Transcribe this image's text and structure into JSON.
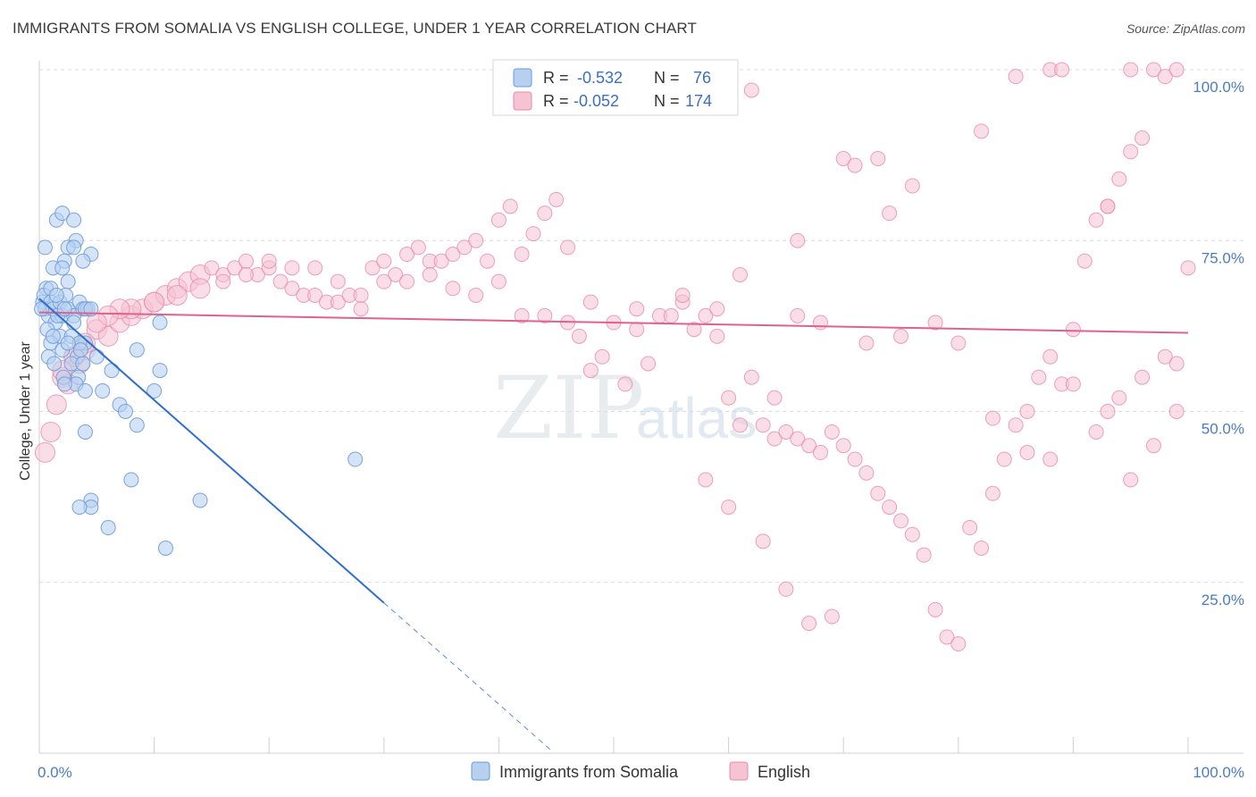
{
  "chart_data": {
    "type": "scatter",
    "title": "IMMIGRANTS FROM SOMALIA VS ENGLISH COLLEGE, UNDER 1 YEAR CORRELATION CHART",
    "source": "Source: ZipAtlas.com",
    "xlabel": "",
    "ylabel": "College, Under 1 year",
    "xlim": [
      0,
      100
    ],
    "ylim": [
      0,
      100
    ],
    "x_tick_labels": [
      "0.0%",
      "100.0%"
    ],
    "y_tick_labels": [
      {
        "value": 100,
        "label": "100.0%"
      },
      {
        "value": 75,
        "label": "75.0%"
      },
      {
        "value": 50,
        "label": "50.0%"
      },
      {
        "value": 25,
        "label": "25.0%"
      }
    ],
    "watermark": {
      "part1": "ZIP",
      "part2": "atlas"
    },
    "legend": {
      "r_label": "R =",
      "n_label": "N =",
      "entries": [
        {
          "name": "Immigrants from Somalia",
          "r": "-0.532",
          "n": "76",
          "color": "#6b9bd8",
          "fill": "#b8d0f0"
        },
        {
          "name": "English",
          "r": "-0.052",
          "n": "174",
          "color": "#e88aa8",
          "fill": "#f6c3d3"
        }
      ]
    },
    "series": [
      {
        "name": "Immigrants from Somalia",
        "color": "#6b9bd8",
        "trend": {
          "x0": 0,
          "y0": 66.5,
          "x1": 30,
          "y1": 22,
          "dash_x1": 44.5,
          "dash_y1": 0.5,
          "color": "#2f6fcf"
        },
        "points": [
          [
            0.3,
            66
          ],
          [
            0.5,
            65
          ],
          [
            0.6,
            68
          ],
          [
            0.8,
            64
          ],
          [
            0.4,
            67
          ],
          [
            1,
            66
          ],
          [
            1.2,
            65
          ],
          [
            1.4,
            63
          ],
          [
            0.7,
            62
          ],
          [
            1.8,
            66
          ],
          [
            2,
            64
          ],
          [
            2.5,
            65
          ],
          [
            3,
            64
          ],
          [
            3.5,
            66
          ],
          [
            3.8,
            65
          ],
          [
            4.2,
            65
          ],
          [
            0.5,
            74
          ],
          [
            1.5,
            78
          ],
          [
            2,
            79
          ],
          [
            3,
            78
          ],
          [
            3.2,
            75
          ],
          [
            2.5,
            74
          ],
          [
            3,
            74
          ],
          [
            4.5,
            73
          ],
          [
            2.2,
            72
          ],
          [
            1.2,
            71
          ],
          [
            2,
            71
          ],
          [
            3.8,
            72
          ],
          [
            2.5,
            69
          ],
          [
            2.3,
            67
          ],
          [
            4,
            65
          ],
          [
            1.6,
            64
          ],
          [
            1.8,
            61
          ],
          [
            2.8,
            61
          ],
          [
            1,
            60
          ],
          [
            4,
            60
          ],
          [
            3.5,
            60
          ],
          [
            5,
            58
          ],
          [
            0.8,
            58
          ],
          [
            2,
            59
          ],
          [
            3.3,
            58
          ],
          [
            1.3,
            57
          ],
          [
            2.8,
            57
          ],
          [
            3.8,
            57
          ],
          [
            6.3,
            56
          ],
          [
            2.1,
            55
          ],
          [
            3.4,
            55
          ],
          [
            3.2,
            54
          ],
          [
            2.2,
            54
          ],
          [
            4,
            53
          ],
          [
            5.5,
            53
          ],
          [
            7,
            51
          ],
          [
            8.5,
            59
          ],
          [
            10.5,
            56
          ],
          [
            10,
            53
          ],
          [
            7.5,
            50
          ],
          [
            4,
            47
          ],
          [
            8.5,
            48
          ],
          [
            8,
            40
          ],
          [
            4.5,
            37
          ],
          [
            4.5,
            36
          ],
          [
            3.5,
            36
          ],
          [
            6,
            33
          ],
          [
            11,
            30
          ],
          [
            14,
            37
          ],
          [
            27.5,
            43
          ],
          [
            10.5,
            63
          ],
          [
            4.5,
            65
          ],
          [
            0.2,
            65
          ],
          [
            1,
            68
          ],
          [
            1.5,
            67
          ],
          [
            2.2,
            65
          ],
          [
            3,
            63
          ],
          [
            1.2,
            61
          ],
          [
            2.5,
            60
          ],
          [
            3.6,
            59
          ]
        ]
      },
      {
        "name": "English",
        "color": "#e88aa8",
        "trend": {
          "x0": 0,
          "y0": 64.5,
          "x1": 100,
          "y1": 61.5,
          "color": "#e0628a"
        },
        "points": [
          [
            0.5,
            44
          ],
          [
            1,
            47
          ],
          [
            1.5,
            51
          ],
          [
            2,
            55
          ],
          [
            2.5,
            54
          ],
          [
            3,
            58
          ],
          [
            3.5,
            57
          ],
          [
            4,
            59
          ],
          [
            5,
            62
          ],
          [
            6,
            61
          ],
          [
            7,
            63
          ],
          [
            8,
            64
          ],
          [
            9,
            65
          ],
          [
            10,
            66
          ],
          [
            11,
            67
          ],
          [
            12,
            68
          ],
          [
            13,
            69
          ],
          [
            14,
            70
          ],
          [
            15,
            71
          ],
          [
            16,
            70
          ],
          [
            17,
            71
          ],
          [
            18,
            72
          ],
          [
            19,
            70
          ],
          [
            20,
            71
          ],
          [
            21,
            69
          ],
          [
            22,
            68
          ],
          [
            23,
            67
          ],
          [
            24,
            67
          ],
          [
            25,
            66
          ],
          [
            26,
            66
          ],
          [
            27,
            67
          ],
          [
            28,
            67
          ],
          [
            29,
            71
          ],
          [
            30,
            72
          ],
          [
            31,
            70
          ],
          [
            32,
            73
          ],
          [
            33,
            74
          ],
          [
            34,
            72
          ],
          [
            35,
            72
          ],
          [
            36,
            73
          ],
          [
            37,
            74
          ],
          [
            38,
            75
          ],
          [
            39,
            72
          ],
          [
            40,
            78
          ],
          [
            41,
            80
          ],
          [
            42,
            73
          ],
          [
            43,
            76
          ],
          [
            44,
            79
          ],
          [
            45,
            81
          ],
          [
            46,
            74
          ],
          [
            47,
            61
          ],
          [
            48,
            56
          ],
          [
            49,
            58
          ],
          [
            50,
            63
          ],
          [
            51,
            54
          ],
          [
            52,
            62
          ],
          [
            53,
            57
          ],
          [
            54,
            64
          ],
          [
            55,
            64
          ],
          [
            56,
            66
          ],
          [
            57,
            62
          ],
          [
            58,
            64
          ],
          [
            59,
            61
          ],
          [
            60,
            52
          ],
          [
            61,
            48
          ],
          [
            62,
            55
          ],
          [
            63,
            48
          ],
          [
            64,
            46
          ],
          [
            65,
            47
          ],
          [
            66,
            46
          ],
          [
            67,
            45
          ],
          [
            68,
            44
          ],
          [
            69,
            47
          ],
          [
            70,
            45
          ],
          [
            71,
            43
          ],
          [
            72,
            41
          ],
          [
            73,
            38
          ],
          [
            74,
            36
          ],
          [
            75,
            34
          ],
          [
            76,
            32
          ],
          [
            77,
            29
          ],
          [
            78,
            21
          ],
          [
            79,
            17
          ],
          [
            80,
            16
          ],
          [
            81,
            33
          ],
          [
            82,
            30
          ],
          [
            83,
            38
          ],
          [
            84,
            43
          ],
          [
            85,
            48
          ],
          [
            86,
            50
          ],
          [
            87,
            55
          ],
          [
            88,
            58
          ],
          [
            89,
            54
          ],
          [
            90,
            62
          ],
          [
            91,
            72
          ],
          [
            92,
            78
          ],
          [
            93,
            80
          ],
          [
            94,
            84
          ],
          [
            95,
            88
          ],
          [
            96,
            90
          ],
          [
            97,
            100
          ],
          [
            98,
            99
          ],
          [
            99,
            100
          ],
          [
            100,
            71
          ],
          [
            62,
            97
          ],
          [
            70,
            87
          ],
          [
            71,
            86
          ],
          [
            73,
            87
          ],
          [
            76,
            83
          ],
          [
            74,
            79
          ],
          [
            82,
            91
          ],
          [
            85,
            99
          ],
          [
            88,
            100
          ],
          [
            89,
            100
          ],
          [
            95,
            100
          ],
          [
            93,
            80
          ],
          [
            66,
            75
          ],
          [
            61,
            70
          ],
          [
            59,
            65
          ],
          [
            56,
            67
          ],
          [
            52,
            65
          ],
          [
            48,
            66
          ],
          [
            46,
            63
          ],
          [
            44,
            64
          ],
          [
            42,
            64
          ],
          [
            40,
            69
          ],
          [
            38,
            67
          ],
          [
            36,
            68
          ],
          [
            34,
            70
          ],
          [
            32,
            69
          ],
          [
            30,
            69
          ],
          [
            28,
            65
          ],
          [
            26,
            69
          ],
          [
            24,
            71
          ],
          [
            22,
            71
          ],
          [
            20,
            72
          ],
          [
            18,
            70
          ],
          [
            16,
            69
          ],
          [
            14,
            68
          ],
          [
            12,
            67
          ],
          [
            10,
            66
          ],
          [
            8,
            65
          ],
          [
            7,
            65
          ],
          [
            6,
            64
          ],
          [
            5,
            63
          ],
          [
            4,
            60
          ],
          [
            3,
            58
          ],
          [
            2,
            56
          ],
          [
            64,
            52
          ],
          [
            66,
            64
          ],
          [
            68,
            63
          ],
          [
            72,
            60
          ],
          [
            75,
            61
          ],
          [
            78,
            63
          ],
          [
            80,
            60
          ],
          [
            83,
            49
          ],
          [
            86,
            44
          ],
          [
            88,
            43
          ],
          [
            92,
            47
          ],
          [
            94,
            52
          ],
          [
            96,
            55
          ],
          [
            98,
            58
          ],
          [
            99,
            57
          ],
          [
            58,
            40
          ],
          [
            60,
            36
          ],
          [
            63,
            31
          ],
          [
            65,
            24
          ],
          [
            67,
            19
          ],
          [
            69,
            20
          ],
          [
            90,
            54
          ],
          [
            93,
            50
          ],
          [
            95,
            40
          ],
          [
            97,
            45
          ],
          [
            99,
            50
          ]
        ]
      }
    ]
  }
}
